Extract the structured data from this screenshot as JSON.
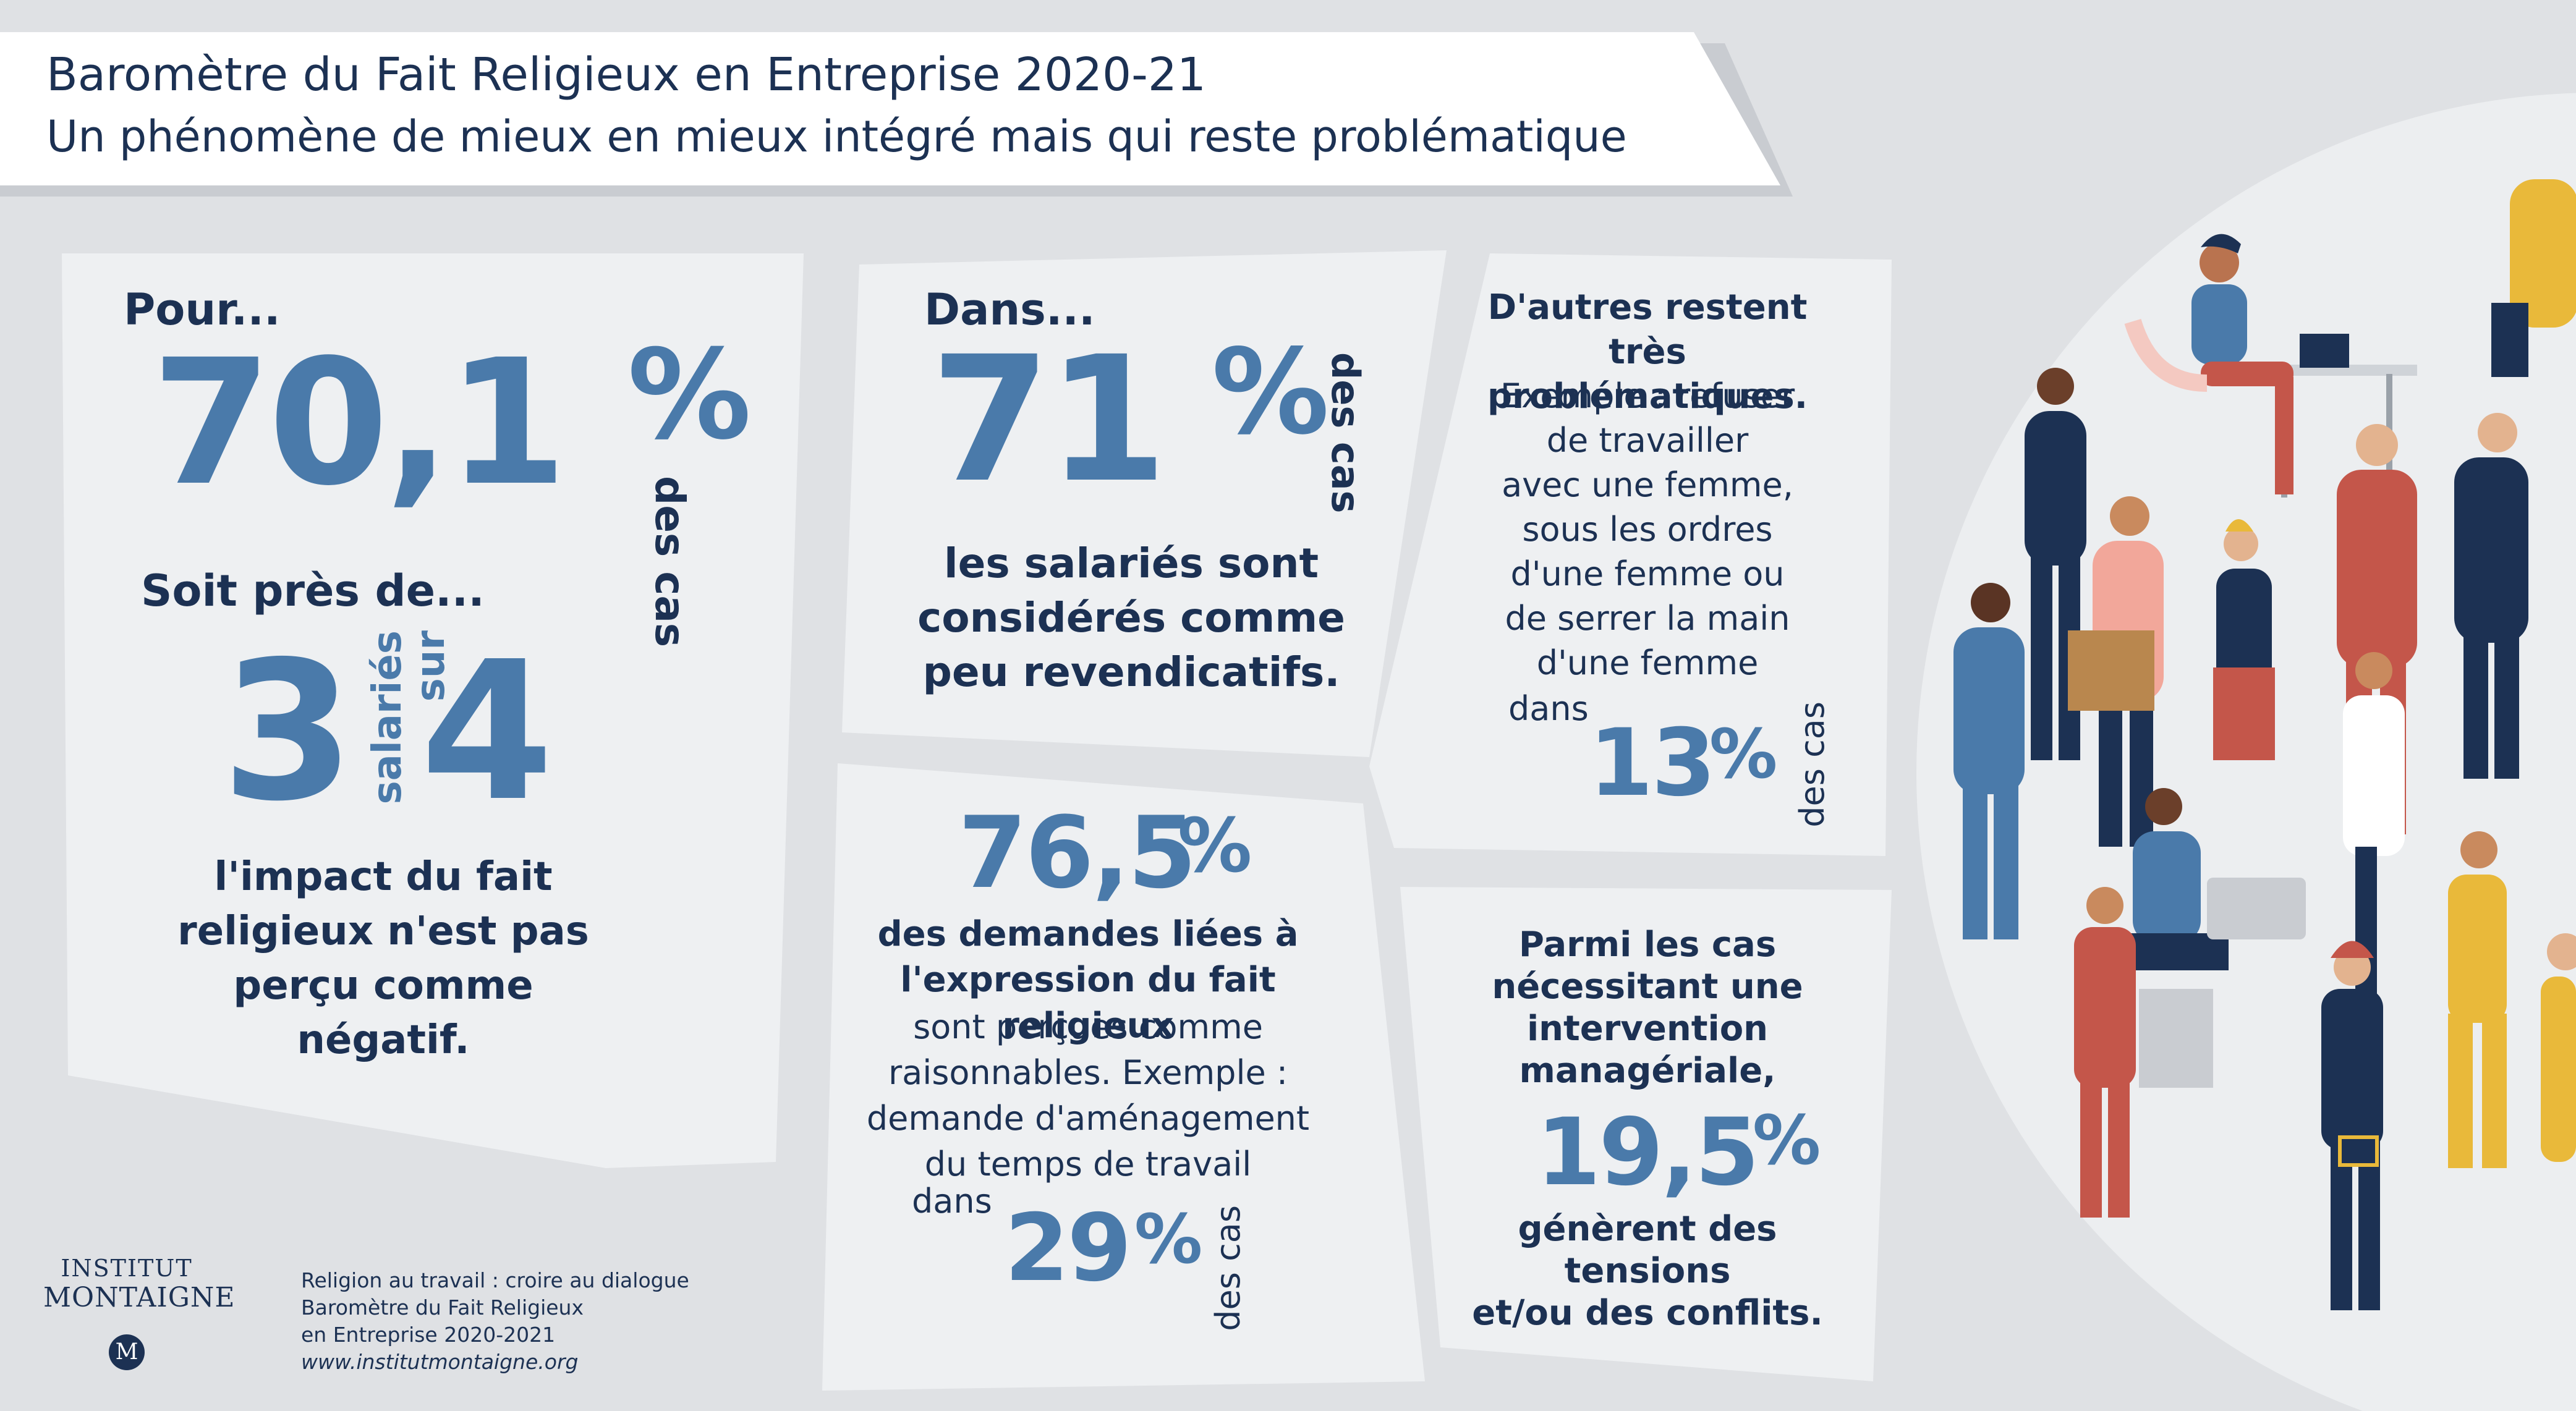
{
  "header": {
    "title": "Baromètre du Fait Religieux en Entreprise 2020-21",
    "subtitle": "Un phénomène de mieux en mieux intégré mais qui reste problématique"
  },
  "panel1": {
    "intro": "Pour...",
    "value": "70,1",
    "percent": "%",
    "unit": "des cas",
    "soit": "Soit près de...",
    "num_a": "3",
    "num_b": "4",
    "mid_top": "salariés",
    "mid_bottom": "sur",
    "text_lines": [
      "l'impact du fait",
      "religieux n'est pas",
      "perçu comme",
      "négatif."
    ]
  },
  "panel2": {
    "intro": "Dans...",
    "value": "71",
    "percent": "%",
    "unit": "des cas",
    "text_lines": [
      "les salariés sont",
      "considérés comme",
      "peu revendicatifs."
    ]
  },
  "panel3": {
    "value": "76,5",
    "percent": "%",
    "bold_lines": [
      "des demandes liées à",
      "l'expression du fait religieux"
    ],
    "text_lines": [
      "sont perçues comme",
      "raisonnables. Exemple :",
      "demande d'aménagement",
      "du temps de travail"
    ],
    "dans": "dans",
    "sub_value": "29",
    "sub_percent": "%",
    "unit": "des cas"
  },
  "panel4": {
    "bold_lines": [
      "D'autres restent",
      "très problématiques."
    ],
    "text_lines": [
      "Exemple : refuser",
      "de travailler",
      "avec une femme,",
      "sous les ordres",
      "d'une femme ou",
      "de serrer la main",
      "d'une femme"
    ],
    "dans": "dans",
    "value": "13",
    "percent": "%",
    "unit": "des cas"
  },
  "panel5": {
    "bold_lines": [
      "Parmi les cas",
      "nécessitant une",
      "intervention",
      "managériale,"
    ],
    "value": "19,5",
    "percent": "%",
    "text_lines": [
      "génèrent des tensions",
      "et/ou des conflits."
    ]
  },
  "logo": {
    "line1": "INSTITUT",
    "line2": "MONTAIGNE",
    "monogram": "M"
  },
  "source": {
    "lines": [
      "Religion au travail : croire au dialogue",
      "Baromètre du Fait Religieux",
      "en Entreprise 2020-2021"
    ],
    "url": "www.institutmontaigne.org"
  },
  "colors": {
    "background": "#dfe1e4",
    "panel": "#eef0f2",
    "navy": "#1c3153",
    "accent_blue": "#4a7aaa",
    "illustration_red": "#c4564a",
    "illustration_yellow": "#e9b93a"
  },
  "illustration": "crowd-of-workers-illustration"
}
